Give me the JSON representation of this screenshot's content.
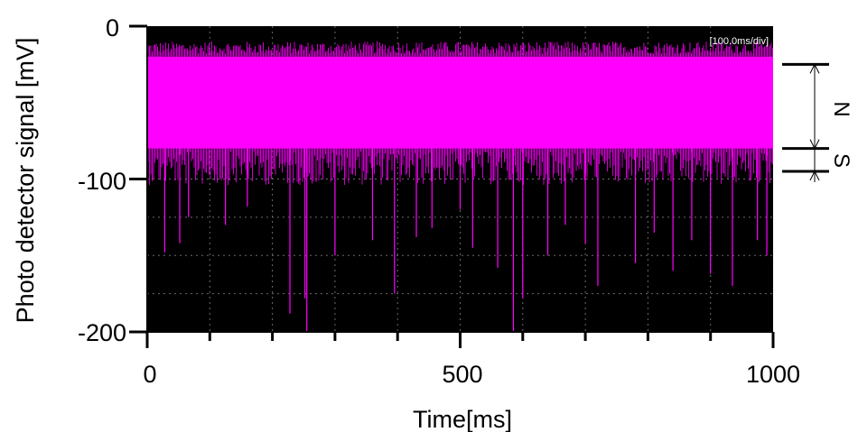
{
  "chart_data": {
    "type": "line",
    "title": "",
    "xlabel": "Time[ms]",
    "ylabel": "Photo detector signal [mV]",
    "xlim": [
      0,
      1000
    ],
    "ylim": [
      -200,
      0
    ],
    "x_ticks": [
      "0",
      "500",
      "1000"
    ],
    "y_ticks": [
      "0",
      "-100",
      "-200"
    ],
    "scale_label": "[100.0ms/div]",
    "grid": true,
    "background_color": "#000000",
    "series": [
      {
        "color": "#ff00ff",
        "band_upper": -20,
        "band_lower": -80,
        "band_mean": -50,
        "spikes": [
          {
            "x": 28,
            "y": -148
          },
          {
            "x": 52,
            "y": -142
          },
          {
            "x": 66,
            "y": -125
          },
          {
            "x": 125,
            "y": -130
          },
          {
            "x": 160,
            "y": -118
          },
          {
            "x": 228,
            "y": -188
          },
          {
            "x": 252,
            "y": -178
          },
          {
            "x": 255,
            "y": -200
          },
          {
            "x": 300,
            "y": -150
          },
          {
            "x": 360,
            "y": -140
          },
          {
            "x": 395,
            "y": -175
          },
          {
            "x": 430,
            "y": -138
          },
          {
            "x": 455,
            "y": -132
          },
          {
            "x": 500,
            "y": -120
          },
          {
            "x": 520,
            "y": -145
          },
          {
            "x": 560,
            "y": -158
          },
          {
            "x": 585,
            "y": -200
          },
          {
            "x": 600,
            "y": -178
          },
          {
            "x": 640,
            "y": -150
          },
          {
            "x": 668,
            "y": -130
          },
          {
            "x": 700,
            "y": -142
          },
          {
            "x": 720,
            "y": -170
          },
          {
            "x": 780,
            "y": -155
          },
          {
            "x": 810,
            "y": -135
          },
          {
            "x": 840,
            "y": -160
          },
          {
            "x": 870,
            "y": -140
          },
          {
            "x": 900,
            "y": -162
          },
          {
            "x": 935,
            "y": -170
          },
          {
            "x": 975,
            "y": -140
          },
          {
            "x": 990,
            "y": -150
          }
        ]
      }
    ]
  },
  "annotations": {
    "noise_label": "N",
    "signal_label": "S",
    "noise_top": -25,
    "noise_bottom": -80,
    "signal_bottom": -95
  }
}
